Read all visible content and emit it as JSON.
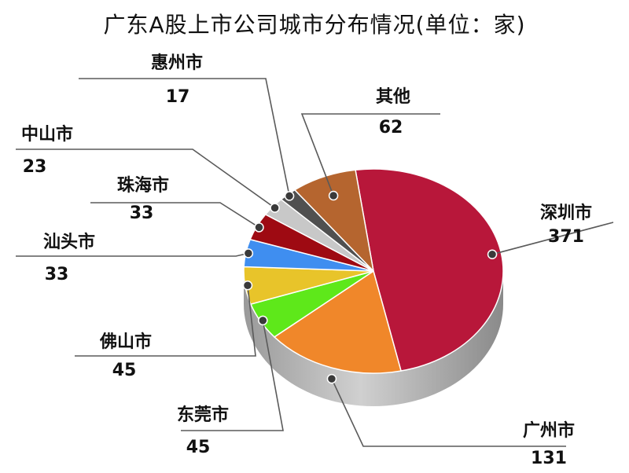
{
  "title": "广东A股上市公司城市分布情况(单位：家)",
  "chart_data": {
    "type": "pie",
    "title": "广东A股上市公司城市分布情况(单位：家)",
    "unit": "家",
    "slices": [
      {
        "label": "深圳市",
        "value": 371,
        "color": "#b8173a"
      },
      {
        "label": "广州市",
        "value": 131,
        "color": "#f0872a"
      },
      {
        "label": "东莞市",
        "value": 45,
        "color": "#5ee81a"
      },
      {
        "label": "佛山市",
        "value": 45,
        "color": "#e8c42a"
      },
      {
        "label": "汕头市",
        "value": 33,
        "color": "#3f8ef0"
      },
      {
        "label": "珠海市",
        "value": 33,
        "color": "#9e0a12"
      },
      {
        "label": "中山市",
        "value": 23,
        "color": "#c8c8c8"
      },
      {
        "label": "惠州市",
        "value": 17,
        "color": "#505050"
      },
      {
        "label": "其他",
        "value": 62,
        "color": "#b5652f"
      }
    ]
  }
}
